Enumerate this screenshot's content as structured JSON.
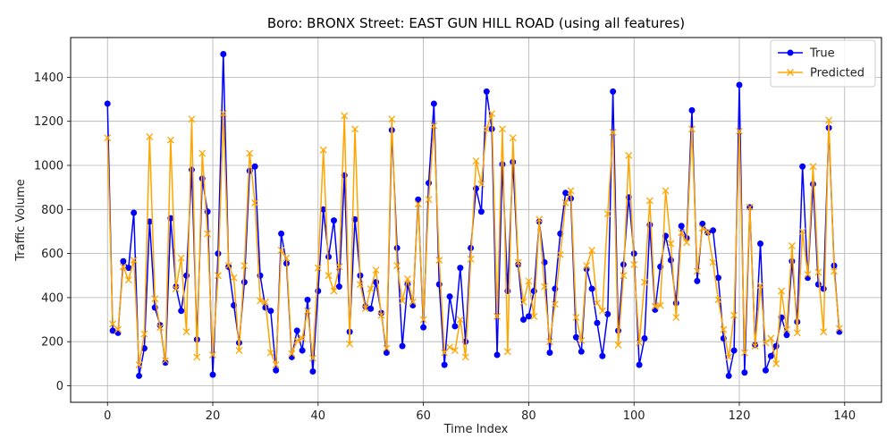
{
  "chart_data": {
    "type": "line",
    "title": "Boro: BRONX Street: EAST GUN HILL ROAD (using all features)",
    "xlabel": "Time Index",
    "ylabel": "Traffic Volume",
    "xlim": [
      -7,
      147
    ],
    "ylim": [
      -75,
      1580
    ],
    "xticks": [
      0,
      20,
      40,
      60,
      80,
      100,
      120,
      140
    ],
    "yticks": [
      0,
      200,
      400,
      600,
      800,
      1000,
      1200,
      1400
    ],
    "grid": true,
    "legend_position": "top-right",
    "series": [
      {
        "name": "True",
        "color": "#0000ff",
        "marker": "circle",
        "values": [
          1280,
          250,
          240,
          565,
          535,
          785,
          45,
          170,
          745,
          355,
          275,
          105,
          760,
          450,
          340,
          500,
          980,
          210,
          940,
          790,
          50,
          600,
          1505,
          540,
          365,
          195,
          470,
          975,
          995,
          500,
          355,
          340,
          70,
          690,
          555,
          130,
          250,
          160,
          390,
          65,
          430,
          800,
          585,
          750,
          450,
          955,
          245,
          755,
          500,
          360,
          350,
          470,
          330,
          150,
          1160,
          625,
          180,
          460,
          365,
          845,
          265,
          920,
          1280,
          460,
          95,
          405,
          270,
          535,
          200,
          625,
          895,
          790,
          1335,
          1165,
          140,
          1005,
          430,
          1015,
          550,
          300,
          315,
          430,
          745,
          560,
          150,
          440,
          690,
          875,
          850,
          220,
          155,
          530,
          440,
          285,
          135,
          325,
          1335,
          250,
          550,
          855,
          600,
          95,
          215,
          730,
          345,
          540,
          680,
          570,
          375,
          725,
          670,
          1250,
          475,
          735,
          695,
          705,
          490,
          215,
          45,
          160,
          1365,
          60,
          810,
          185,
          645,
          70,
          135,
          180,
          310,
          230,
          565,
          290,
          995,
          490,
          915,
          460,
          440,
          1170,
          545,
          245
        ]
      },
      {
        "name": "Predicted",
        "color": "#ffa500",
        "marker": "x",
        "values": [
          1125,
          280,
          255,
          540,
          480,
          570,
          95,
          235,
          1130,
          395,
          265,
          115,
          1115,
          440,
          580,
          245,
          1210,
          130,
          1055,
          690,
          140,
          500,
          1235,
          545,
          490,
          160,
          545,
          1055,
          830,
          385,
          380,
          150,
          95,
          615,
          580,
          145,
          205,
          215,
          340,
          125,
          535,
          1070,
          500,
          430,
          540,
          1225,
          190,
          1165,
          460,
          350,
          440,
          525,
          320,
          170,
          1210,
          545,
          385,
          485,
          380,
          825,
          300,
          845,
          1180,
          570,
          150,
          175,
          160,
          300,
          130,
          575,
          1020,
          915,
          1165,
          1235,
          315,
          1165,
          155,
          1125,
          560,
          380,
          475,
          315,
          755,
          450,
          200,
          370,
          595,
          830,
          885,
          310,
          205,
          545,
          615,
          375,
          340,
          780,
          1150,
          185,
          500,
          1045,
          550,
          195,
          470,
          840,
          360,
          365,
          885,
          645,
          310,
          695,
          650,
          1165,
          520,
          715,
          700,
          560,
          390,
          255,
          130,
          320,
          1155,
          150,
          810,
          180,
          455,
          195,
          215,
          100,
          430,
          255,
          635,
          240,
          700,
          505,
          995,
          515,
          245,
          1205,
          520,
          260
        ]
      }
    ]
  }
}
